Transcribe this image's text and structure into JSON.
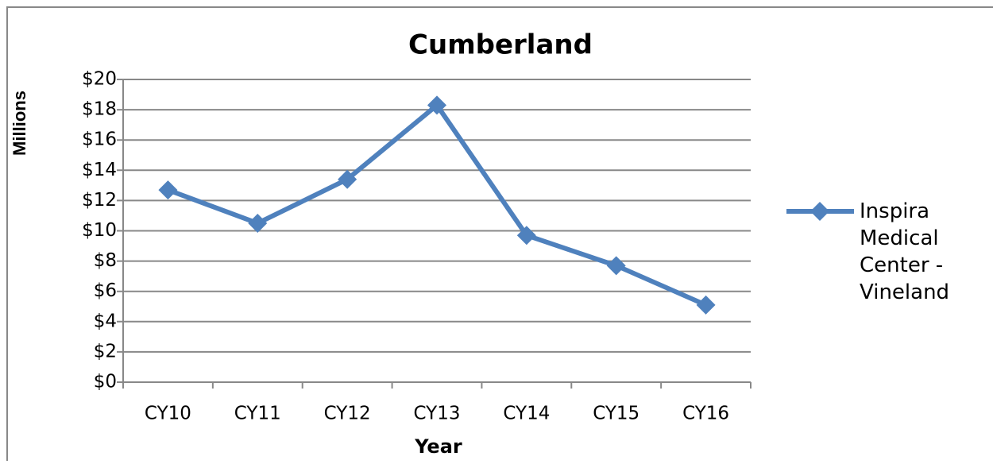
{
  "chart_data": {
    "type": "line",
    "title": "Cumberland",
    "x_label": "Year",
    "y_label": "Millions",
    "categories": [
      "CY10",
      "CY11",
      "CY12",
      "CY13",
      "CY14",
      "CY15",
      "CY16"
    ],
    "series": [
      {
        "name": "Inspira Medical Center - Vineland",
        "color": "#4f81bd",
        "values": [
          12.7,
          10.5,
          13.4,
          18.3,
          9.7,
          7.7,
          5.1
        ]
      }
    ],
    "ylim": [
      0,
      20
    ],
    "yticks": [
      {
        "value": 0,
        "label": "$0"
      },
      {
        "value": 2,
        "label": "$2"
      },
      {
        "value": 4,
        "label": "$4"
      },
      {
        "value": 6,
        "label": "$6"
      },
      {
        "value": 8,
        "label": "$8"
      },
      {
        "value": 10,
        "label": "$10"
      },
      {
        "value": 12,
        "label": "$12"
      },
      {
        "value": 14,
        "label": "$14"
      },
      {
        "value": 16,
        "label": "$16"
      },
      {
        "value": 18,
        "label": "$18"
      },
      {
        "value": 20,
        "label": "$20"
      }
    ],
    "grid": true,
    "legend": "right"
  }
}
